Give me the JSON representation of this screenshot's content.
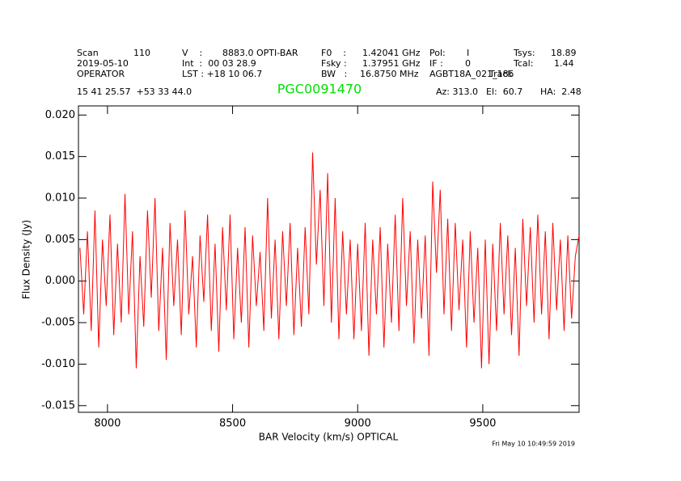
{
  "chart_data": {
    "type": "line",
    "title": "PGC0091470",
    "x_label": "BAR Velocity (km/s) OPTICAL",
    "y_label": "Flux Density (Jy)",
    "timestamp": "Fri May 10 10:49:59 2019",
    "header": [
      "Scan",
      "110",
      "V    :",
      "8883.0 OPTI-BAR",
      "F0    :",
      "1.42041 GHz",
      "Pol:",
      "I",
      "Tsys:",
      "18.89",
      "2019-05-10",
      "Int  :  00 03 28.9",
      "Fsky :",
      "1.37951 GHz",
      "IF :",
      "0",
      "Tcal:",
      "1.44",
      "OPERATOR",
      "LST : +18 10 06.7",
      "BW   :",
      "16.8750 MHz",
      "AGBT18A_021_185",
      "Track",
      "15 41 25.57  +53 33 44.0",
      "Az: 313.0",
      "El:  60.7",
      "HA:  2.48"
    ],
    "color": "#ff0000",
    "title_color": "#00e000",
    "xlim": [
      7884,
      9885
    ],
    "ylim": [
      -0.0158,
      0.0211
    ],
    "xticks": [
      8000,
      8500,
      9000,
      9500
    ],
    "yticks": [
      {
        "value": -0.015,
        "label": "-0.015"
      },
      {
        "value": -0.01,
        "label": "-0.010"
      },
      {
        "value": -0.005,
        "label": "-0.005"
      },
      {
        "value": 0,
        "label": "0.000"
      },
      {
        "value": 0.005,
        "label": "0.005"
      },
      {
        "value": 0.01,
        "label": "0.010"
      },
      {
        "value": 0.015,
        "label": "0.015"
      },
      {
        "value": 0.02,
        "label": "0.020"
      }
    ],
    "x": [
      7890,
      7905,
      7920,
      7935,
      7950,
      7965,
      7980,
      7995,
      8010,
      8025,
      8040,
      8055,
      8070,
      8085,
      8100,
      8115,
      8130,
      8145,
      8160,
      8175,
      8190,
      8205,
      8220,
      8235,
      8250,
      8265,
      8280,
      8295,
      8310,
      8325,
      8340,
      8355,
      8370,
      8385,
      8400,
      8415,
      8430,
      8445,
      8460,
      8475,
      8490,
      8505,
      8520,
      8535,
      8550,
      8565,
      8580,
      8595,
      8610,
      8625,
      8640,
      8655,
      8670,
      8685,
      8700,
      8715,
      8730,
      8745,
      8760,
      8775,
      8790,
      8805,
      8820,
      8835,
      8850,
      8865,
      8880,
      8895,
      8910,
      8925,
      8940,
      8955,
      8970,
      8985,
      9000,
      9015,
      9030,
      9045,
      9060,
      9075,
      9090,
      9105,
      9120,
      9135,
      9150,
      9165,
      9180,
      9195,
      9210,
      9225,
      9240,
      9255,
      9270,
      9285,
      9300,
      9315,
      9330,
      9345,
      9360,
      9375,
      9390,
      9405,
      9420,
      9435,
      9450,
      9465,
      9480,
      9495,
      9510,
      9525,
      9540,
      9555,
      9570,
      9585,
      9600,
      9615,
      9630,
      9645,
      9660,
      9675,
      9690,
      9705,
      9720,
      9735,
      9750,
      9765,
      9780,
      9795,
      9810,
      9825,
      9840,
      9855,
      9870,
      9885
    ],
    "values": [
      0.004,
      -0.004,
      0.006,
      -0.006,
      0.0085,
      -0.008,
      0.005,
      -0.003,
      0.008,
      -0.0065,
      0.0045,
      -0.005,
      0.0105,
      -0.004,
      0.006,
      -0.0105,
      0.003,
      -0.0055,
      0.0085,
      -0.002,
      0.01,
      -0.006,
      0.004,
      -0.0095,
      0.007,
      -0.003,
      0.005,
      -0.0065,
      0.0085,
      -0.004,
      0.003,
      -0.008,
      0.0055,
      -0.0025,
      0.008,
      -0.006,
      0.0045,
      -0.0085,
      0.0065,
      -0.0035,
      0.008,
      -0.007,
      0.004,
      -0.005,
      0.0065,
      -0.008,
      0.0055,
      -0.003,
      0.0035,
      -0.006,
      0.01,
      -0.0045,
      0.005,
      -0.007,
      0.006,
      -0.003,
      0.007,
      -0.0065,
      0.004,
      -0.0055,
      0.0065,
      -0.004,
      0.0155,
      0.002,
      0.011,
      -0.003,
      0.013,
      -0.005,
      0.01,
      -0.007,
      0.006,
      -0.004,
      0.005,
      -0.007,
      0.0045,
      -0.006,
      0.007,
      -0.009,
      0.005,
      -0.004,
      0.0065,
      -0.008,
      0.0045,
      -0.005,
      0.008,
      -0.006,
      0.01,
      -0.003,
      0.006,
      -0.0075,
      0.005,
      -0.0045,
      0.0055,
      -0.009,
      0.012,
      0.001,
      0.011,
      -0.004,
      0.0075,
      -0.006,
      0.007,
      -0.0035,
      0.005,
      -0.008,
      0.006,
      -0.005,
      0.004,
      -0.0105,
      0.005,
      -0.01,
      0.0045,
      -0.006,
      0.007,
      -0.004,
      0.0055,
      -0.0065,
      0.004,
      -0.009,
      0.0075,
      -0.003,
      0.0065,
      -0.005,
      0.008,
      -0.004,
      0.006,
      -0.007,
      0.007,
      -0.0035,
      0.005,
      -0.006,
      0.0055,
      -0.0045,
      0.003,
      0.0055
    ]
  }
}
